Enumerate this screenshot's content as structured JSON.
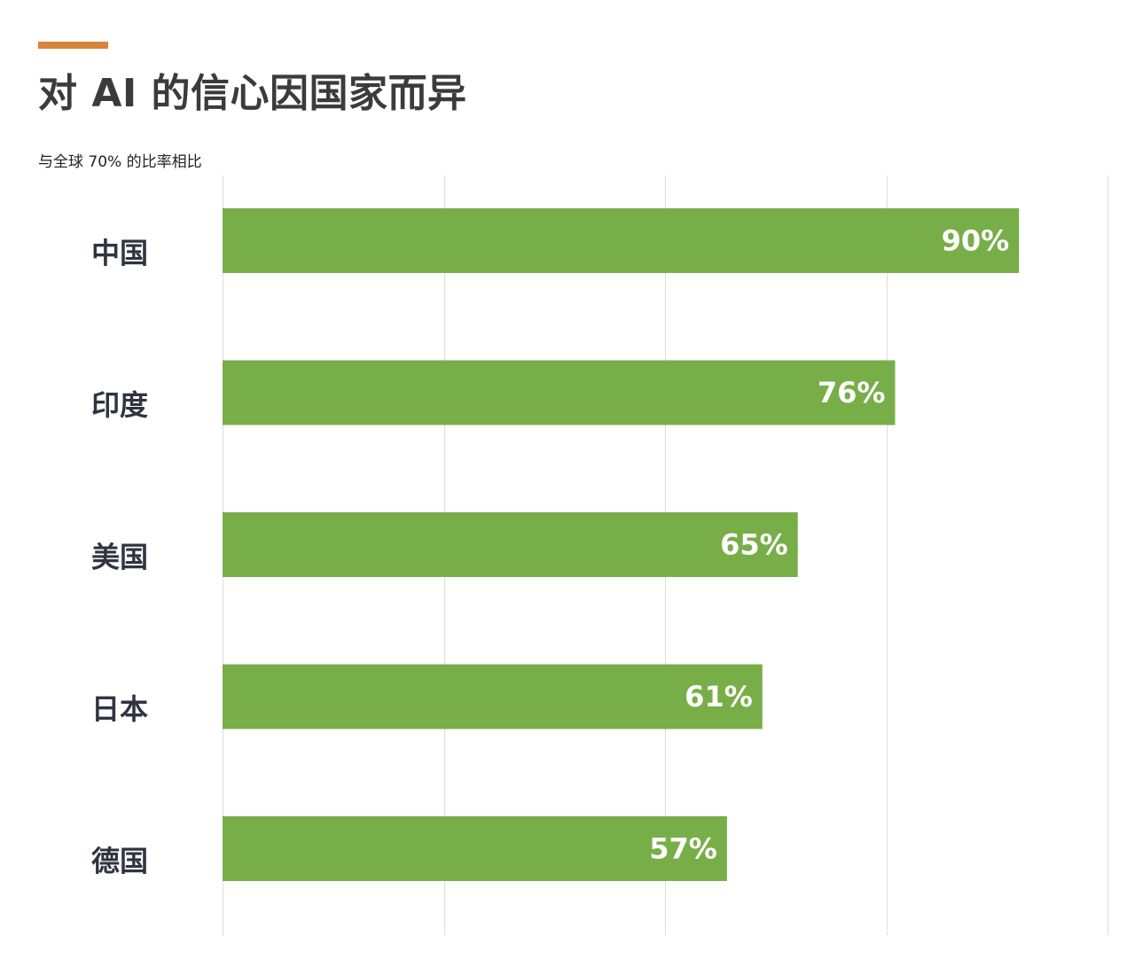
{
  "page": {
    "title": "对 AI 的信心因国家而异",
    "subtitle": "与全球 70% 的比率相比"
  },
  "colors": {
    "accent": "#d9843b",
    "bar": "#78ae48",
    "grid": "#dddddd",
    "title": "#3b3b3b",
    "category_text": "#2f3440",
    "value_text": "#ffffff"
  },
  "chart_data": {
    "type": "bar",
    "orientation": "horizontal",
    "categories": [
      "中国",
      "印度",
      "美国",
      "日本",
      "德国"
    ],
    "values": [
      90,
      76,
      65,
      61,
      57
    ],
    "value_labels": [
      "90%",
      "76%",
      "65%",
      "61%",
      "57%"
    ],
    "title": "对 AI 的信心因国家而异",
    "subtitle": "与全球 70% 的比率相比",
    "xlabel": "",
    "ylabel": "",
    "xlim": [
      0,
      100
    ],
    "grid": true,
    "legend": "none"
  }
}
